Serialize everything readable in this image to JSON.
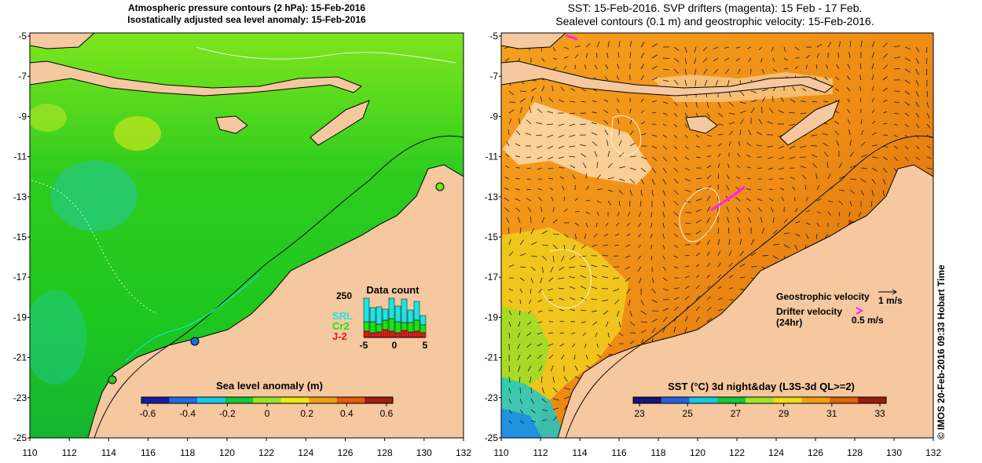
{
  "left_panel": {
    "title_line1": "Atmospheric pressure contours (2 hPa): 15-Feb-2016",
    "title_line2": "Isostatically adjusted sea level anomaly: 15-Feb-2016",
    "colorbar": {
      "label": "Sea level anomaly (m)",
      "ticks": [
        "-0.6",
        "-0.4",
        "-0.2",
        "0",
        "0.2",
        "0.4",
        "0.6"
      ],
      "colors": [
        "#1a1aa0",
        "#1e6ee6",
        "#19c8e6",
        "#14c83c",
        "#96e628",
        "#f0e614",
        "#f0a014",
        "#e65a0a",
        "#a01e0a"
      ]
    },
    "inset": {
      "title": "Data count",
      "max_label": "250",
      "x_ticks": [
        "-5",
        "0",
        "5"
      ],
      "legend": [
        {
          "label": "SRL",
          "color": "#19e6e6"
        },
        {
          "label": "Cr2",
          "color": "#14e614"
        },
        {
          "label": "J-2",
          "color": "#e61414"
        }
      ]
    }
  },
  "right_panel": {
    "title_line1": "SST: 15-Feb-2016. SVP drifters (magenta): 15 Feb - 17 Feb.",
    "title_line2": "Sealevel contours (0.1 m) and geostrophic velocity: 15-Feb-2016.",
    "legend": {
      "geostrophic": "Geostrophic velocity",
      "geostrophic_scale": "1 m/s",
      "drifter": "Drifter velocity",
      "drifter_period": "(24hr)",
      "drifter_scale": "0.5 m/s"
    },
    "colorbar": {
      "label": "SST (°C) 3d night&day (L3S-3d QL>=2)",
      "ticks": [
        "23",
        "25",
        "27",
        "29",
        "31",
        "33"
      ],
      "colors": [
        "#14147a",
        "#1e64dc",
        "#14c8e6",
        "#14c83c",
        "#a0e628",
        "#f0dc14",
        "#f0a014",
        "#dc640a",
        "#961e0a"
      ]
    }
  },
  "axes": {
    "lat_ticks": [
      "-5",
      "-7",
      "-9",
      "-11",
      "-13",
      "-15",
      "-17",
      "-19",
      "-21",
      "-23",
      "-25"
    ],
    "lon_ticks": [
      "110",
      "112",
      "114",
      "116",
      "118",
      "120",
      "122",
      "124",
      "126",
      "128",
      "130",
      "132"
    ]
  },
  "credit": "© IMOS 20-Feb-2016 09:33 Hobart Time",
  "colors": {
    "land": "#f5c8a0",
    "ocean_sla": "#2ecc1e",
    "ocean_sst": "#f0961e",
    "drifter": "#ff1eff"
  }
}
